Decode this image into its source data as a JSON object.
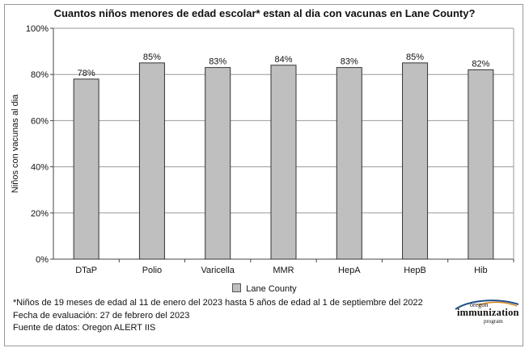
{
  "chart_data": {
    "type": "bar",
    "title": "Cuantos niños menores de edad escolar* estan al dia con vacunas en Lane County?",
    "ylabel": "Niños con vacunas al dia",
    "xlabel": "",
    "categories": [
      "DTaP",
      "Polio",
      "Varicella",
      "MMR",
      "HepA",
      "HepB",
      "Hib"
    ],
    "series": [
      {
        "name": "Lane County",
        "values": [
          78,
          85,
          83,
          84,
          83,
          85,
          82
        ]
      }
    ],
    "data_labels": [
      "78%",
      "85%",
      "83%",
      "84%",
      "83%",
      "85%",
      "82%"
    ],
    "ylim": [
      0,
      100
    ],
    "yticks": [
      0,
      20,
      40,
      60,
      80,
      100
    ],
    "ytick_labels": [
      "0%",
      "20%",
      "40%",
      "60%",
      "80%",
      "100%"
    ],
    "grid": true,
    "legend_position": "bottom",
    "bar_color": "#bfbfbf"
  },
  "legend": {
    "label": "Lane County"
  },
  "footnotes": {
    "note": "*Niños de 19 meses de edad al 11 de enero del 2023 hasta 5 años de edad al 1 de septiembre del 2022",
    "date": "Fecha de evaluación: 27 de febrero del 2023",
    "source": "Fuente de datos: Oregon ALERT IIS"
  },
  "logo": {
    "oregon": "oregon",
    "immunization": "immunization",
    "program": "program"
  }
}
